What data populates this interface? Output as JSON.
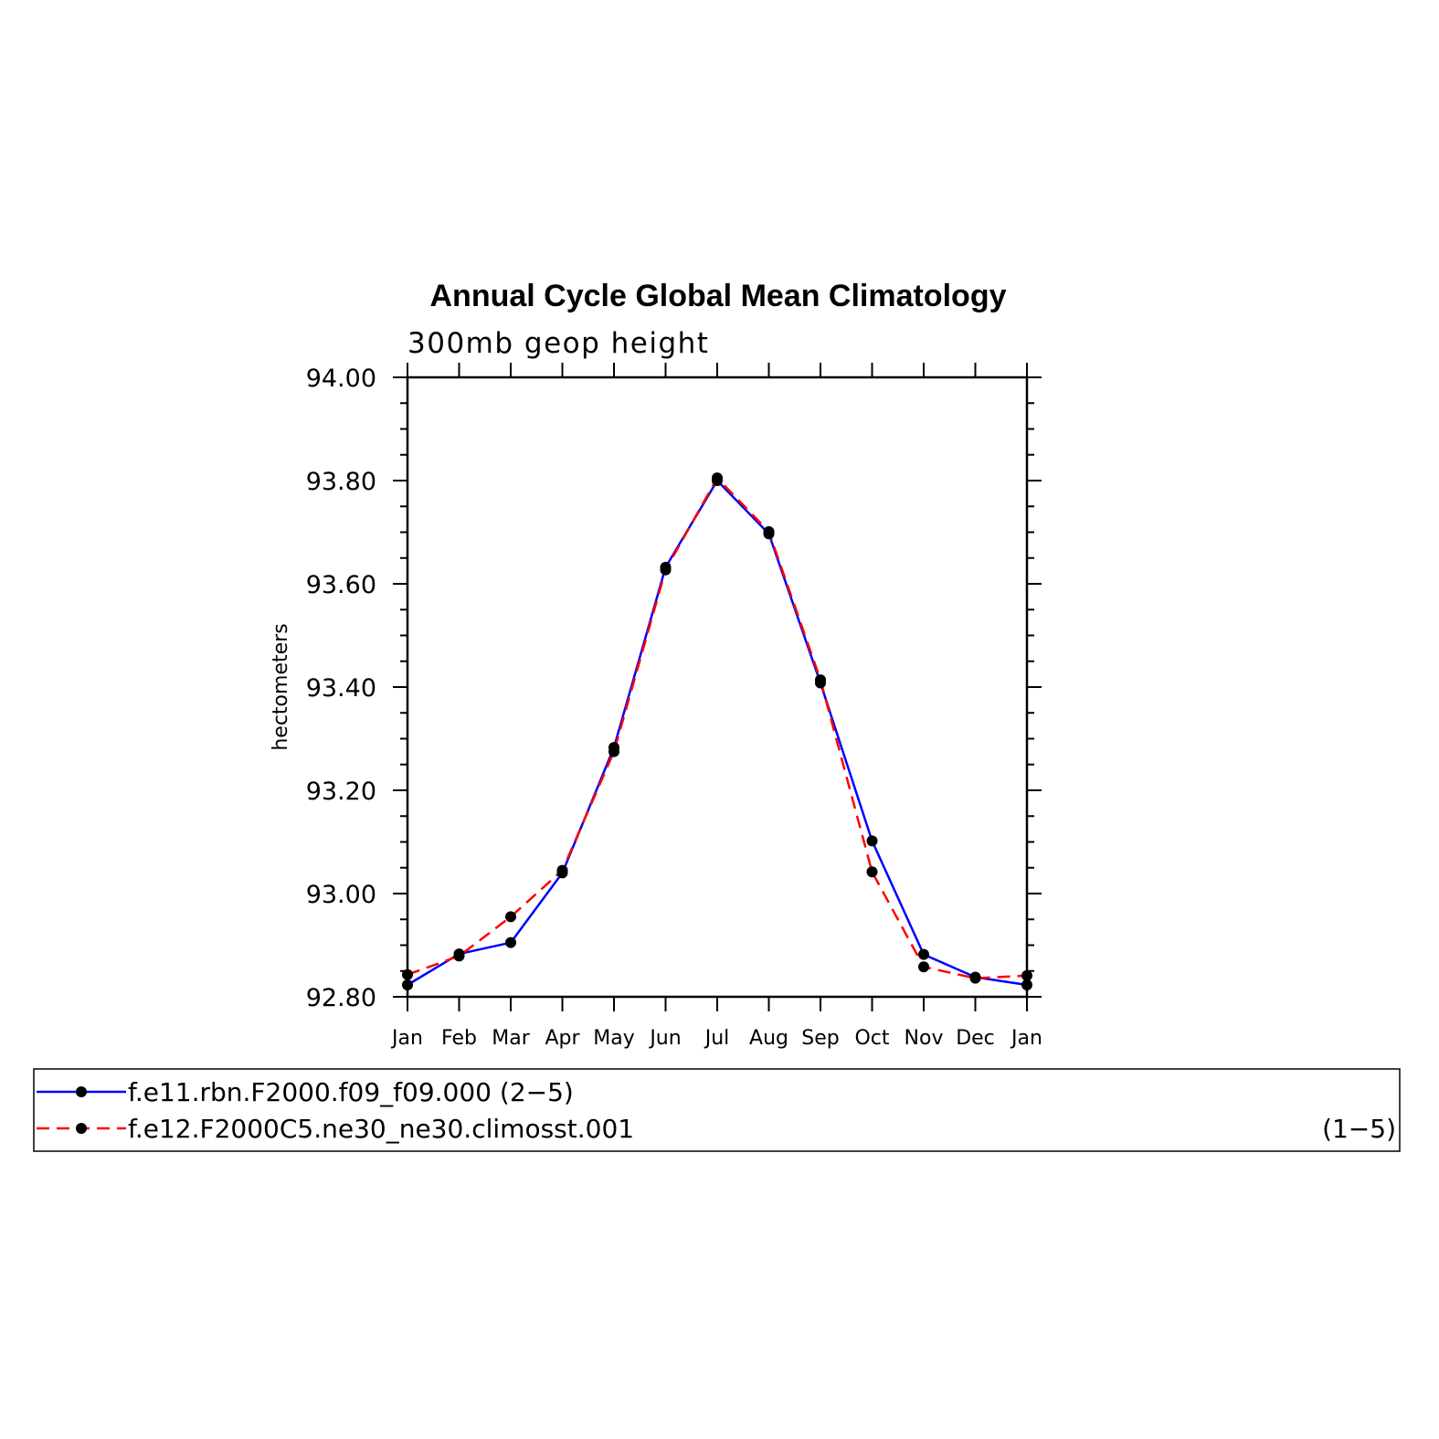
{
  "chart_data": {
    "type": "line",
    "title": "Annual Cycle Global Mean Climatology",
    "subtitle": "300mb geop height",
    "ylabel": "hectometers",
    "xlabel": "",
    "ylim": [
      92.8,
      94.0
    ],
    "yticks": [
      "94.00",
      "93.80",
      "93.60",
      "93.40",
      "93.20",
      "93.00",
      "92.80"
    ],
    "ytick_values": [
      94.0,
      93.8,
      93.6,
      93.4,
      93.2,
      93.0,
      92.8
    ],
    "categories": [
      "Jan",
      "Feb",
      "Mar",
      "Apr",
      "May",
      "Jun",
      "Jul",
      "Aug",
      "Sep",
      "Oct",
      "Nov",
      "Dec",
      "Jan"
    ],
    "grid": false,
    "legend_position": "bottom",
    "series": [
      {
        "name": "f.e11.rbn.F2000.f09_f09.000",
        "legend_suffix": "(2−5)",
        "color": "#0000ff",
        "dash": "solid",
        "values": [
          92.823,
          92.883,
          92.905,
          93.04,
          93.283,
          93.632,
          93.8,
          93.697,
          93.408,
          93.102,
          92.882,
          92.838,
          92.823
        ]
      },
      {
        "name": "f.e12.F2000C5.ne30_ne30.climosst.001",
        "legend_suffix": "(1−5)",
        "color": "#ff0000",
        "dash": "dashed",
        "values": [
          92.843,
          92.879,
          92.955,
          93.045,
          93.275,
          93.627,
          93.805,
          93.701,
          93.414,
          93.042,
          92.858,
          92.836,
          92.841
        ]
      }
    ]
  }
}
